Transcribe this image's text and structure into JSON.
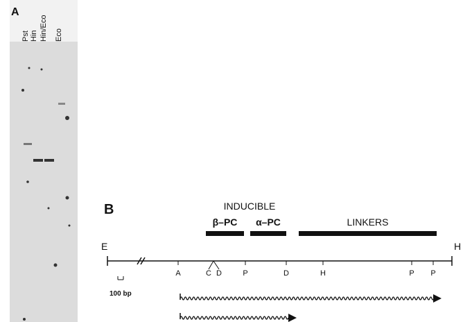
{
  "panel_a": {
    "label": "A",
    "lanes": [
      "Pst",
      "Hin",
      "Hin/Eco",
      "Eco"
    ]
  },
  "panel_b": {
    "label": "B",
    "heading": "INDUCIBLE",
    "regions": [
      "β–PC",
      "α–PC",
      "LINKERS"
    ],
    "ends": [
      "E",
      "H"
    ],
    "sites": [
      "A",
      "C",
      "D",
      "P",
      "D",
      "H",
      "P",
      "P"
    ],
    "scale": "100 bp"
  }
}
